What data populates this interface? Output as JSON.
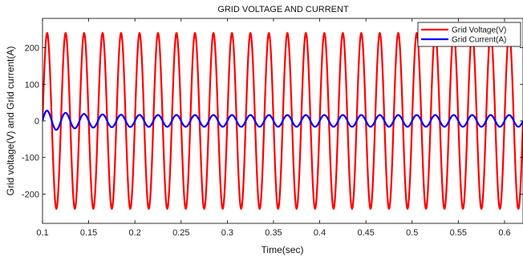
{
  "chart_data": {
    "type": "line",
    "title": "GRID VOLTAGE AND CURRENT",
    "xlabel": "Time(sec)",
    "ylabel": "Grid voltage(V) and Grid current(A)",
    "xlim": [
      0.1,
      0.62
    ],
    "ylim": [
      -280,
      280
    ],
    "x_ticks": [
      0.1,
      0.15,
      0.2,
      0.25,
      0.3,
      0.35,
      0.4,
      0.45,
      0.5,
      0.55,
      0.6
    ],
    "x_tick_labels": [
      "0.1",
      "0.15",
      "0.2",
      "0.25",
      "0.3",
      "0.35",
      "0.4",
      "0.45",
      "0.5",
      "0.55",
      "0.6"
    ],
    "y_ticks": [
      -200,
      -100,
      0,
      100,
      200
    ],
    "y_tick_labels": [
      "-200",
      "-100",
      "0",
      "100",
      "200"
    ],
    "grid": false,
    "legend_position": "top-right",
    "series": [
      {
        "name": "Grid Voltage(V)",
        "color": "#ff0000",
        "waveform": "sine",
        "amplitude": 240,
        "frequency_hz": 50,
        "phase_deg": 0
      },
      {
        "name": "Grid Current(A)",
        "color": "#0000ff",
        "waveform": "sine",
        "amplitude": 16,
        "frequency_hz": 50,
        "phase_deg": 0,
        "initial_peak": 30
      }
    ]
  }
}
